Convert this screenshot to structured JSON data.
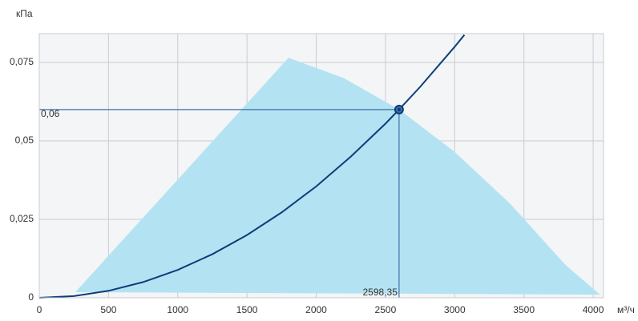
{
  "chart_data": {
    "type": "line",
    "y_label": "кПа",
    "x_label": "м³/ч",
    "xlim": [
      0,
      4075
    ],
    "ylim": [
      0,
      0.0842
    ],
    "xticks": [
      0,
      500,
      1000,
      1500,
      2000,
      2500,
      3000,
      3500,
      4000
    ],
    "yticks": [
      0,
      {
        "value": 0.025,
        "label": "0,025"
      },
      {
        "value": 0.05,
        "label": "0,05"
      },
      {
        "value": 0.075,
        "label": "0,075"
      }
    ],
    "grid": true,
    "series": [
      {
        "type": "area",
        "color": "#b3e3f2",
        "x": [
          260,
          1800,
          2200,
          2598.35,
          3000,
          3400,
          3800,
          4050
        ],
        "values": [
          0.0018,
          0.0765,
          0.07,
          0.06,
          0.0465,
          0.03,
          0.0105,
          0.001
        ]
      },
      {
        "type": "line",
        "color": "#0d3d7a",
        "x": [
          0,
          250,
          500,
          750,
          1000,
          1250,
          1500,
          1750,
          2000,
          2250,
          2500,
          2598.35,
          2750,
          3000,
          3070
        ],
        "values": [
          0,
          0.000555,
          0.00222,
          0.005,
          0.00889,
          0.01389,
          0.02,
          0.0272,
          0.0355,
          0.045,
          0.0555,
          0.06,
          0.0672,
          0.08,
          0.0838
        ]
      }
    ],
    "point": {
      "x": 2598.35,
      "y": 0.06,
      "x_label": "2598,35",
      "y_label": "0,06",
      "color": "#3d6fa8"
    }
  }
}
